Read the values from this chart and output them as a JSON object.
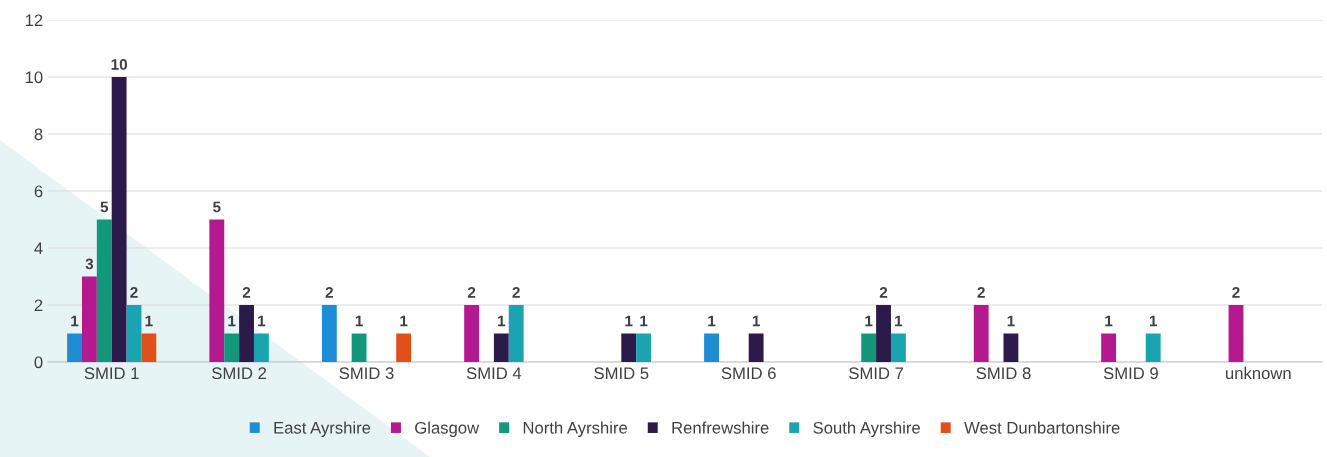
{
  "chart_data": {
    "type": "bar",
    "categories": [
      "SMID 1",
      "SMID 2",
      "SMID 3",
      "SMID 4",
      "SMID 5",
      "SMID 6",
      "SMID 7",
      "SMID 8",
      "SMID 9",
      "unknown"
    ],
    "series": [
      {
        "name": "East Ayrshire",
        "color": "#1f8dd6",
        "values": [
          1,
          null,
          2,
          null,
          null,
          1,
          null,
          null,
          null,
          null
        ]
      },
      {
        "name": "Glasgow",
        "color": "#b5198f",
        "values": [
          3,
          5,
          null,
          2,
          null,
          null,
          null,
          2,
          1,
          2
        ]
      },
      {
        "name": "North Ayrshire",
        "color": "#12977a",
        "values": [
          5,
          1,
          1,
          null,
          null,
          null,
          1,
          null,
          null,
          null
        ]
      },
      {
        "name": "Renfrewshire",
        "color": "#2c1a4a",
        "values": [
          10,
          2,
          null,
          1,
          1,
          1,
          2,
          1,
          null,
          null
        ]
      },
      {
        "name": "South Ayrshire",
        "color": "#1aa3b0",
        "values": [
          2,
          1,
          null,
          2,
          1,
          null,
          1,
          null,
          1,
          null
        ]
      },
      {
        "name": "West Dunbartonshire",
        "color": "#e0501b",
        "values": [
          1,
          null,
          1,
          null,
          null,
          null,
          null,
          null,
          null,
          null
        ]
      }
    ],
    "ylim": [
      0,
      12
    ],
    "yticks": [
      0,
      2,
      4,
      6,
      8,
      10,
      12
    ],
    "grid": "y",
    "legend": "bottom",
    "data_labels": true
  }
}
